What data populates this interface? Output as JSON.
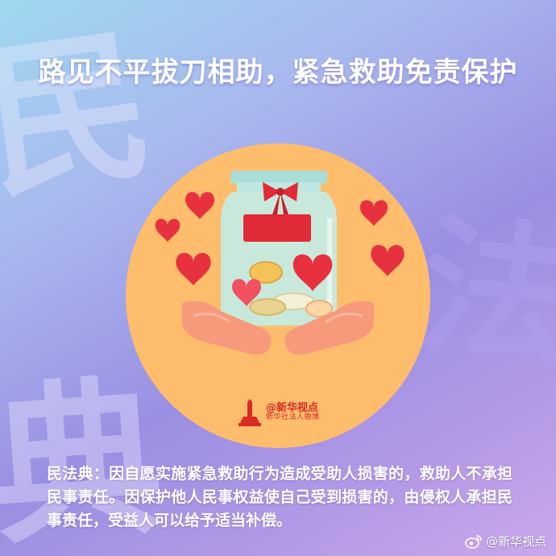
{
  "background_chars": [
    "民",
    "法",
    "典"
  ],
  "title": "路见不平拔刀相助，紧急救助免责保护",
  "brand": {
    "name": "@新华视点",
    "sub": "新华社法人微博"
  },
  "body_text": "民法典：因自愿实施紧急救助行为造成受助人损害的，救助人不承担民事责任。因保护他人民事权益使自己受到损害的，由侵权人承担民事责任，受益人可以给予适当补偿。",
  "watermark": "@新华视点",
  "colors": {
    "circle": "#fdbd6d",
    "heart": "#e8313f",
    "ribbon": "#e02a35",
    "hand": "#f79a7c",
    "jar": "#c4ece6",
    "brand_red": "#d92b23"
  },
  "icons": [
    "heart-icon",
    "jar-icon",
    "hands-icon",
    "coin-icon",
    "xinhua-logo-icon",
    "weibo-icon"
  ]
}
